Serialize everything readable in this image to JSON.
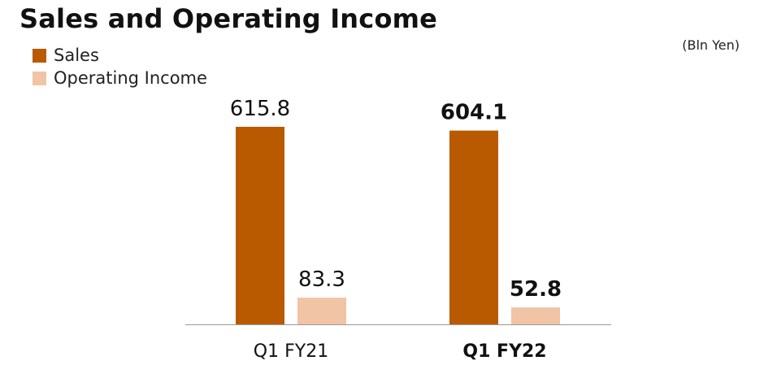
{
  "chart_data": {
    "type": "bar",
    "title": "Sales and Operating Income",
    "unit": "(Bln Yen)",
    "categories": [
      "Q1 FY21",
      "Q1 FY22"
    ],
    "category_bold": [
      false,
      true
    ],
    "series": [
      {
        "name": "Sales",
        "values": [
          615.8,
          604.1
        ],
        "color": "#BA5A00"
      },
      {
        "name": "Operating Income",
        "values": [
          83.3,
          52.8
        ],
        "color": "#F0C4A5"
      }
    ],
    "value_labels": [
      [
        "615.8",
        "604.1"
      ],
      [
        "83.3",
        "52.8"
      ]
    ],
    "ylim": [
      0,
      640
    ],
    "legend": "top-left",
    "grid": false
  }
}
